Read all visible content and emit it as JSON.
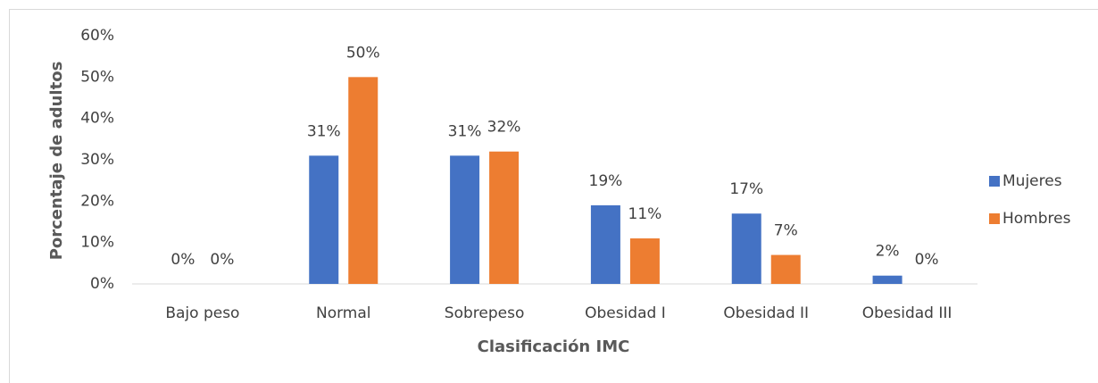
{
  "chart_data": {
    "type": "bar",
    "x_label": "Clasificación IMC",
    "y_label": "Porcentaje de adultos",
    "categories": [
      "Bajo peso",
      "Normal",
      "Sobrepeso",
      "Obesidad I",
      "Obesidad II",
      "Obesidad III"
    ],
    "series": [
      {
        "name": "Mujeres",
        "color": "#4472c4",
        "values": [
          0,
          31,
          31,
          19,
          17,
          2
        ],
        "value_labels": [
          "0%",
          "31%",
          "31%",
          "19%",
          "17%",
          "2%"
        ]
      },
      {
        "name": "Hombres",
        "color": "#ed7d31",
        "values": [
          0,
          50,
          32,
          11,
          7,
          0
        ],
        "value_labels": [
          "0%",
          "50%",
          "32%",
          "11%",
          "7%",
          "0%"
        ]
      }
    ],
    "ylim": [
      0,
      60
    ],
    "yticks": [
      {
        "value": 0,
        "label": "0%"
      },
      {
        "value": 10,
        "label": "10%"
      },
      {
        "value": 20,
        "label": "20%"
      },
      {
        "value": 30,
        "label": "30%"
      },
      {
        "value": 40,
        "label": "40%"
      },
      {
        "value": 50,
        "label": "50%"
      },
      {
        "value": 60,
        "label": "60%"
      }
    ],
    "grid": false,
    "legend": "right"
  }
}
